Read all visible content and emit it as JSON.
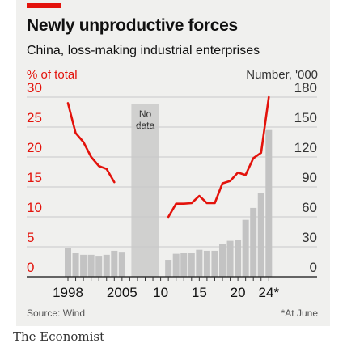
{
  "header": {
    "title": "Newly unproductive forces",
    "subtitle": "China, loss-making industrial enterprises",
    "left_axis_label": "% of total",
    "right_axis_label": "Number, '000"
  },
  "footer": {
    "source": "Source: Wind",
    "note": "*At June",
    "brand": "The Economist"
  },
  "chart_data": {
    "type": "bar",
    "years": [
      1998,
      1999,
      2000,
      2001,
      2002,
      2003,
      2004,
      2005,
      2006,
      2007,
      2008,
      2009,
      2010,
      2011,
      2012,
      2013,
      2014,
      2015,
      2016,
      2017,
      2018,
      2019,
      2020,
      2021,
      2022,
      2023,
      2024
    ],
    "series": [
      {
        "name": "Number, '000",
        "axis": "right",
        "values": [
          29,
          24,
          22,
          22,
          21,
          22,
          26,
          25,
          null,
          null,
          null,
          null,
          null,
          17,
          23,
          24,
          24,
          27,
          26,
          26,
          33,
          36,
          37,
          57,
          69,
          84,
          147
        ]
      },
      {
        "name": "% of total",
        "axis": "left",
        "values": [
          29,
          24,
          22.5,
          20,
          18.5,
          18,
          15.8,
          null,
          null,
          null,
          null,
          null,
          null,
          10,
          12.2,
          12.2,
          12.3,
          13.5,
          12.3,
          12.3,
          15.6,
          16,
          17.4,
          17,
          19.8,
          20.7,
          30
        ]
      }
    ],
    "no_data": {
      "label": "No\ndata",
      "range": [
        2006,
        2010
      ]
    },
    "left_axis": {
      "ylim": [
        0,
        30
      ],
      "ticks": [
        0,
        5,
        10,
        15,
        20,
        25,
        30
      ]
    },
    "right_axis": {
      "ylim": [
        0,
        180
      ],
      "ticks": [
        0,
        30,
        60,
        90,
        120,
        150,
        180
      ]
    },
    "x_tick_labels": [
      {
        "year": 1998,
        "label": "1998"
      },
      {
        "year": 2005,
        "label": "2005"
      },
      {
        "year": 2010,
        "label": "10"
      },
      {
        "year": 2015,
        "label": "15"
      },
      {
        "year": 2020,
        "label": "20"
      },
      {
        "year": 2024,
        "label": "24*"
      }
    ],
    "grid": true,
    "colors": {
      "bars": "#c3c3c3",
      "line": "#e3120b",
      "no_data_band": "#d0d0cf",
      "grid": "#c9c9c9",
      "left_axis_text": "#e3120b",
      "right_axis_text": "#333333"
    }
  }
}
